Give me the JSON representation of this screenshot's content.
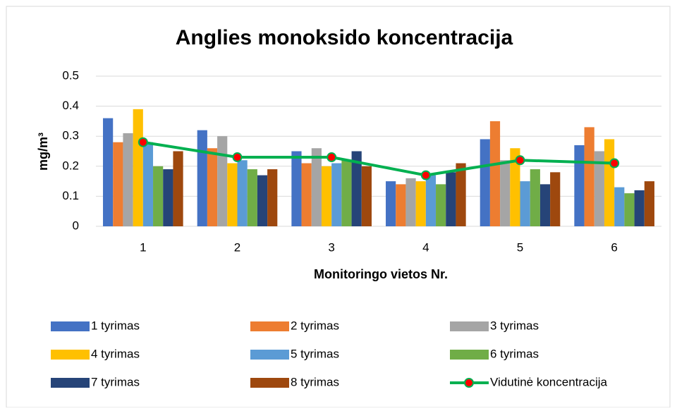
{
  "chart_data": {
    "type": "bar",
    "title": "Anglies monoksido koncentracija",
    "x_label": "Monitoringo vietos Nr.",
    "y_label": "mg/m³",
    "categories": [
      "1",
      "2",
      "3",
      "4",
      "5",
      "6"
    ],
    "series": [
      {
        "name": "1 tyrimas",
        "color": "#4472c4",
        "values": [
          0.36,
          0.32,
          0.25,
          0.15,
          0.29,
          0.27
        ]
      },
      {
        "name": "2 tyrimas",
        "color": "#ed7d31",
        "values": [
          0.28,
          0.26,
          0.21,
          0.14,
          0.35,
          0.33
        ]
      },
      {
        "name": "3 tyrimas",
        "color": "#a5a5a5",
        "values": [
          0.31,
          0.3,
          0.26,
          0.16,
          0.22,
          0.25
        ]
      },
      {
        "name": "4 tyrimas",
        "color": "#ffc000",
        "values": [
          0.39,
          0.21,
          0.2,
          0.15,
          0.26,
          0.29
        ]
      },
      {
        "name": "5 tyrimas",
        "color": "#5b9bd5",
        "values": [
          0.28,
          0.22,
          0.21,
          0.17,
          0.15,
          0.13
        ]
      },
      {
        "name": "6 tyrimas",
        "color": "#70ad47",
        "values": [
          0.2,
          0.19,
          0.22,
          0.14,
          0.19,
          0.11
        ]
      },
      {
        "name": "7 tyrimas",
        "color": "#264478",
        "values": [
          0.19,
          0.17,
          0.25,
          0.18,
          0.14,
          0.12
        ]
      },
      {
        "name": "8 tyrimas",
        "color": "#9e480e",
        "values": [
          0.25,
          0.19,
          0.2,
          0.21,
          0.18,
          0.15
        ]
      },
      {
        "name": "Vidutinė koncentracija",
        "type": "line",
        "color": "#00b050",
        "marker_color": "#ff0000",
        "values": [
          0.28,
          0.23,
          0.23,
          0.17,
          0.22,
          0.21
        ]
      }
    ],
    "ylim": [
      0,
      0.5
    ],
    "yticks": [
      0,
      0.1,
      0.2,
      0.3,
      0.4,
      0.5
    ],
    "grid": true
  }
}
